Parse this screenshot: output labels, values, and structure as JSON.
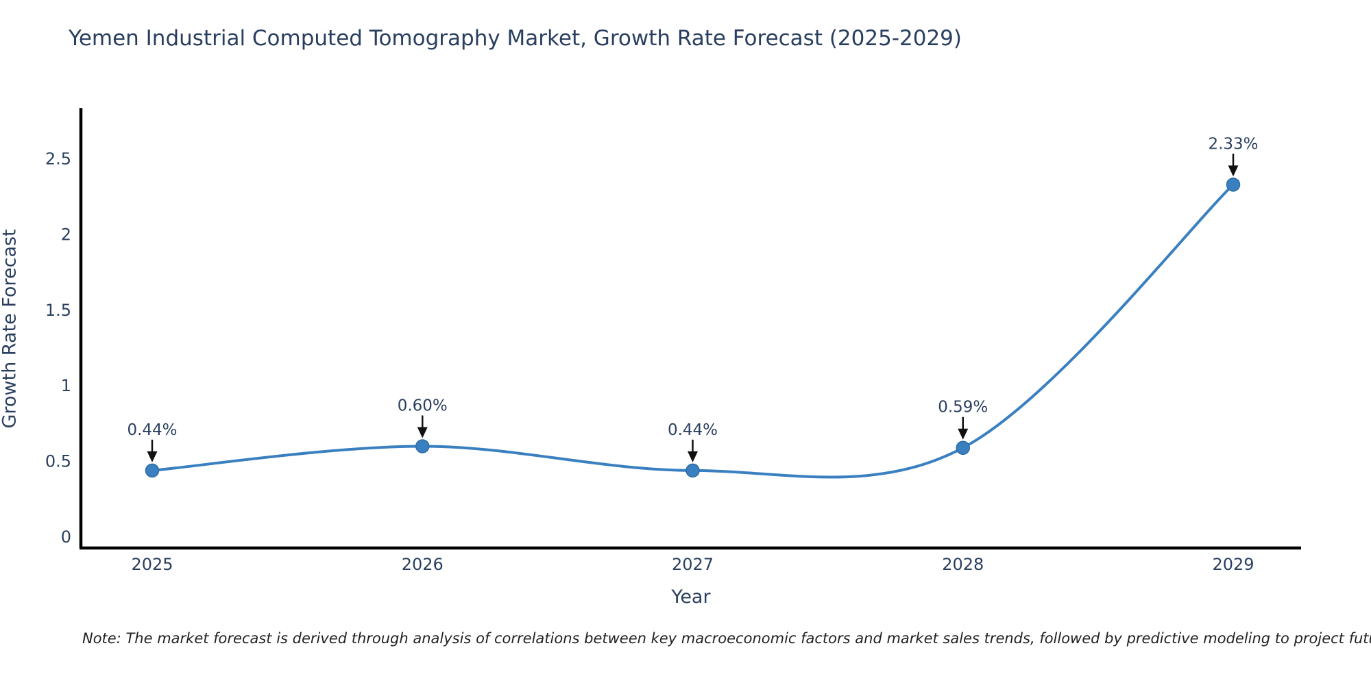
{
  "title": "Yemen Industrial Computed Tomography Market, Growth Rate Forecast (2025-2029)",
  "note": "Note: The market forecast is derived through analysis of correlations between key macroeconomic factors and market sales trends, followed by predictive modeling to project future sales",
  "chart_data": {
    "type": "line",
    "title": "Yemen Industrial Computed Tomography Market, Growth Rate Forecast (2025-2029)",
    "categories": [
      "2025",
      "2026",
      "2027",
      "2028",
      "2029"
    ],
    "values": [
      0.44,
      0.6,
      0.44,
      0.59,
      2.33
    ],
    "point_labels": [
      "0.44%",
      "0.60%",
      "0.44%",
      "0.59%",
      "2.33%"
    ],
    "xlabel": "Year",
    "ylabel": "Growth Rate Forecast",
    "ylim": [
      -0.07,
      2.83
    ],
    "yticks": [
      0,
      0.5,
      1,
      1.5,
      2,
      2.5
    ],
    "ytick_labels": [
      "0",
      "0.5",
      "1",
      "1.5",
      "2",
      "2.5"
    ],
    "grid": false,
    "legend": false,
    "line_shape": "spline",
    "line_color": "#3a80c1",
    "marker_color": "#3a80c1",
    "marker_edge_color": "#2f6ba3",
    "axis_color": "#000000",
    "annotation_arrow_color": "#111111",
    "text_color": "#2a3f5f"
  }
}
